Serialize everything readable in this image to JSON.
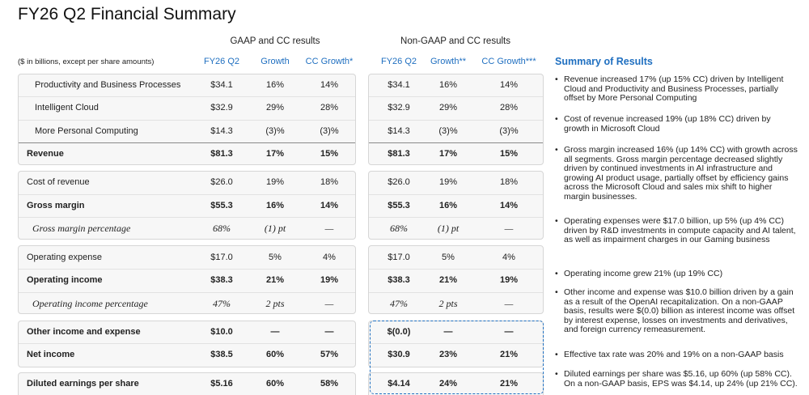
{
  "title": "FY26 Q2 Financial Summary",
  "table": {
    "group_headers": [
      "GAAP and CC results",
      "Non-GAAP and CC results"
    ],
    "units_note": "($ in billions, except per share amounts)",
    "columns": [
      "FY26 Q2",
      "Growth",
      "CC Growth*",
      "FY26 Q2",
      "Growth**",
      "CC Growth***"
    ],
    "rows": [
      {
        "label": "Productivity and Business Processes",
        "style": "indent",
        "values": [
          "$34.1",
          "16%",
          "14%",
          "$34.1",
          "16%",
          "14%"
        ]
      },
      {
        "label": "Intelligent Cloud",
        "style": "indent",
        "values": [
          "$32.9",
          "29%",
          "28%",
          "$32.9",
          "29%",
          "28%"
        ]
      },
      {
        "label": "More Personal Computing",
        "style": "indent",
        "values": [
          "$14.3",
          "(3)%",
          "(3)%",
          "$14.3",
          "(3)%",
          "(3)%"
        ]
      },
      {
        "label": "Revenue",
        "style": "bold",
        "values": [
          "$81.3",
          "17%",
          "15%",
          "$81.3",
          "17%",
          "15%"
        ]
      },
      {
        "label": "Cost of revenue",
        "style": "plain",
        "values": [
          "$26.0",
          "19%",
          "18%",
          "$26.0",
          "19%",
          "18%"
        ]
      },
      {
        "label": "Gross margin",
        "style": "bold",
        "values": [
          "$55.3",
          "16%",
          "14%",
          "$55.3",
          "16%",
          "14%"
        ]
      },
      {
        "label": "Gross margin percentage",
        "style": "italic",
        "values": [
          "68%",
          "(1) pt",
          "—",
          "68%",
          "(1) pt",
          "—"
        ]
      },
      {
        "label": "Operating expense",
        "style": "plain",
        "values": [
          "$17.0",
          "5%",
          "4%",
          "$17.0",
          "5%",
          "4%"
        ]
      },
      {
        "label": "Operating income",
        "style": "bold",
        "values": [
          "$38.3",
          "21%",
          "19%",
          "$38.3",
          "21%",
          "19%"
        ]
      },
      {
        "label": "Operating income percentage",
        "style": "italic",
        "values": [
          "47%",
          "2 pts",
          "—",
          "47%",
          "2 pts",
          "—"
        ]
      },
      {
        "label": "Other income and expense",
        "style": "bold",
        "values": [
          "$10.0",
          "—",
          "—",
          "$(0.0)",
          "—",
          "—"
        ]
      },
      {
        "label": "Net income",
        "style": "bold",
        "values": [
          "$38.5",
          "60%",
          "57%",
          "$30.9",
          "23%",
          "21%"
        ]
      },
      {
        "label": "Diluted earnings per share",
        "style": "bold",
        "values": [
          "$5.16",
          "60%",
          "58%",
          "$4.14",
          "24%",
          "21%"
        ]
      }
    ]
  },
  "summary": {
    "title": "Summary of Results",
    "bullets": [
      "Revenue increased 17% (up 15% CC) driven by Intelligent Cloud and Productivity and Business Processes, partially offset by More Personal Computing",
      "Cost of revenue increased 19% (up 18% CC) driven by growth in Microsoft Cloud",
      "Gross margin increased 16% (up 14% CC) with growth across all segments. Gross margin percentage decreased slightly driven by continued investments in AI infrastructure and growing AI product usage, partially offset by efficiency gains across the Microsoft Cloud and sales mix shift to higher margin businesses.",
      "Operating expenses were $17.0 billion, up 5% (up 4% CC) driven by R&D investments in compute capacity and AI talent, as well as impairment charges in our Gaming business",
      "Operating income grew 21% (up 19% CC)",
      "Other income and expense was $10.0 billion driven by a gain as a result of the OpenAI recapitalization. On a non-GAAP basis, results were $(0.0) billion as interest income was offset by interest expense, losses on investments and derivatives, and foreign currency remeasurement.",
      "Effective tax rate was 20% and 19% on a non-GAAP basis",
      "Diluted earnings per share was $5.16, up 60% (up 58% CC). On a non-GAAP basis, EPS was $4.14, up 24% (up 21% CC)."
    ]
  }
}
